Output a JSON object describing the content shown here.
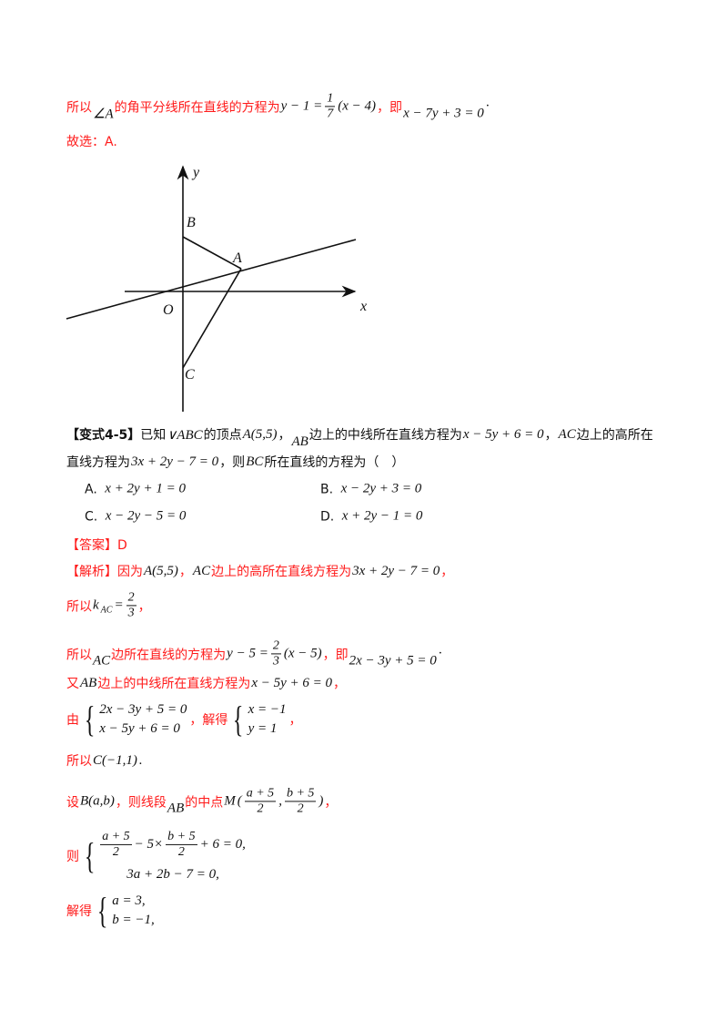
{
  "lines": [
    {
      "color": "red",
      "segs": [
        [
          "z",
          "所以"
        ],
        [
          "low",
          "∠A"
        ],
        [
          "z",
          "的角平分线所在直线的方程为"
        ],
        [
          "m",
          "y − 1 ="
        ],
        [
          "f",
          "1",
          "7"
        ],
        [
          "m",
          "(x − 4)"
        ],
        [
          "z",
          "，即"
        ],
        [
          "low",
          "x − 7y + 3 = 0"
        ],
        [
          "m",
          "·"
        ]
      ]
    },
    {
      "color": "red",
      "segs": [
        [
          "z",
          "故选：A."
        ]
      ]
    },
    {
      "color": "black",
      "segs": [
        [
          "zb",
          "【变式4-5】"
        ],
        [
          "z",
          "已知"
        ],
        [
          "m",
          "∨ABC"
        ],
        [
          "z",
          " 的顶点"
        ],
        [
          "m",
          "A(5,5)"
        ],
        [
          "z",
          "，"
        ],
        [
          "low",
          "AB"
        ],
        [
          "z",
          "边上的中线所在直线方程为"
        ],
        [
          "m",
          "x − 5y + 6 = 0"
        ],
        [
          "z",
          "，"
        ],
        [
          "m",
          "AC"
        ],
        [
          "z",
          " 边上的高所在"
        ]
      ]
    },
    {
      "color": "black",
      "segs": [
        [
          "z",
          "直线方程为"
        ],
        [
          "m",
          "3x + 2y − 7 = 0"
        ],
        [
          "z",
          "，则"
        ],
        [
          "m",
          "BC"
        ],
        [
          "z",
          " 所在直线的方程为（　）"
        ]
      ]
    },
    {
      "color": "red",
      "segs": [
        [
          "z",
          "【答案】D"
        ]
      ]
    },
    {
      "color": "red",
      "segs": [
        [
          "z",
          "【解析】因为"
        ],
        [
          "m",
          "A(5,5)"
        ],
        [
          "z",
          "，"
        ],
        [
          "m",
          "AC"
        ],
        [
          "z",
          " 边上的高所在直线方程为"
        ],
        [
          "m",
          "3x + 2y − 7 = 0"
        ],
        [
          "z",
          "，"
        ]
      ]
    },
    {
      "color": "red",
      "segs": [
        [
          "z",
          "所以"
        ],
        [
          "m",
          "k"
        ],
        [
          "subm",
          "AC"
        ],
        [
          "m",
          " ="
        ],
        [
          "f",
          "2",
          "3"
        ],
        [
          "z",
          "，"
        ]
      ]
    },
    {
      "color": "red",
      "segs": [
        [
          "z",
          "所以"
        ],
        [
          "low",
          "AC"
        ],
        [
          "z",
          "边所在直线的方程为"
        ],
        [
          "m",
          "y − 5 ="
        ],
        [
          "f",
          "2",
          "3"
        ],
        [
          "m",
          "(x − 5)"
        ],
        [
          "z",
          "，即"
        ],
        [
          "low",
          "2x − 3y + 5 = 0"
        ],
        [
          "m",
          "·"
        ]
      ]
    },
    {
      "color": "red",
      "segs": [
        [
          "z",
          "又"
        ],
        [
          "m",
          "AB"
        ],
        [
          "z",
          " 边上的中线所在直线方程为"
        ],
        [
          "m",
          "x − 5y + 6 = 0"
        ],
        [
          "z",
          "，"
        ]
      ]
    },
    {
      "color": "red",
      "segs": [
        [
          "z",
          "由"
        ],
        [
          "s",
          [
            [
              [
                "m",
                "2x − 3y + 5 = 0"
              ]
            ],
            [
              [
                "m",
                "x − 5y + 6 = 0"
              ]
            ]
          ]
        ],
        [
          "z",
          "，解得"
        ],
        [
          "s",
          [
            [
              [
                "m",
                "x = −1"
              ]
            ],
            [
              [
                "m",
                "y = 1"
              ]
            ]
          ]
        ],
        [
          "z",
          "，"
        ]
      ]
    },
    {
      "color": "red",
      "segs": [
        [
          "z",
          " 所以"
        ],
        [
          "m",
          "C(−1,1)"
        ],
        [
          "m",
          "."
        ]
      ]
    },
    {
      "color": "red",
      "segs": [
        [
          "z",
          "设"
        ],
        [
          "m",
          "B(a,b)"
        ],
        [
          "z",
          "，则线段"
        ],
        [
          "low",
          "AB"
        ],
        [
          "z",
          "的中点"
        ],
        [
          "m",
          "M"
        ],
        [
          "m",
          "("
        ],
        [
          "f",
          "a + 5",
          "2"
        ],
        [
          "m",
          ","
        ],
        [
          "f",
          "b + 5",
          "2"
        ],
        [
          "m",
          ")"
        ],
        [
          "z",
          "，"
        ]
      ]
    },
    {
      "color": "red",
      "segs": [
        [
          "z",
          "则"
        ],
        [
          "s",
          [
            [
              [
                "f",
                "a + 5",
                "2"
              ],
              [
                "m",
                "− 5×"
              ],
              [
                "f",
                "b + 5",
                "2"
              ],
              [
                "m",
                "+ 6 = 0,"
              ]
            ],
            [
              [
                "m",
                "　　3a + 2b − 7 = 0,"
              ]
            ]
          ]
        ]
      ]
    },
    {
      "color": "red",
      "segs": [
        [
          "z",
          "解得"
        ],
        [
          "s",
          [
            [
              [
                "m",
                "a = 3,"
              ]
            ],
            [
              [
                "m",
                "b = −1,"
              ]
            ]
          ]
        ]
      ]
    }
  ],
  "options": [
    {
      "letter": "A.",
      "expr": "x + 2y + 1 = 0"
    },
    {
      "letter": "B.",
      "expr": "x − 2y + 3 = 0"
    },
    {
      "letter": "C.",
      "expr": "x − 2y − 5 = 0"
    },
    {
      "letter": "D.",
      "expr": "x + 2y − 1 = 0"
    }
  ],
  "figure": {
    "labels": {
      "y": "y",
      "x": "x",
      "O": "O",
      "A": "A",
      "B": "B",
      "C": "C"
    }
  }
}
